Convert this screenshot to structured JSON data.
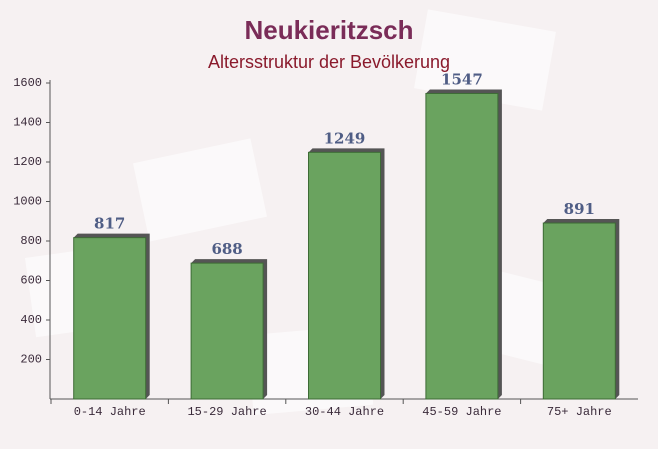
{
  "chart_data": {
    "type": "bar",
    "title": "Neukieritzsch",
    "subtitle": "Altersstruktur der Bevölkerung",
    "categories": [
      "0-14 Jahre",
      "15-29 Jahre",
      "30-44 Jahre",
      "45-59 Jahre",
      "75+ Jahre"
    ],
    "values": [
      817,
      688,
      1249,
      1547,
      891
    ],
    "color": "#6aa35f",
    "ylim": [
      0,
      1600
    ],
    "yticks": [
      200,
      400,
      600,
      800,
      1000,
      1200,
      1400,
      1600
    ]
  }
}
